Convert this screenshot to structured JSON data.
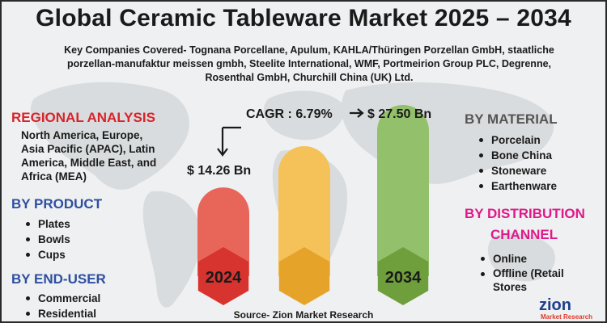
{
  "title": "Global Ceramic Tableware Market 2025 – 2034",
  "companies": "Key Companies Covered- Tognana Porcellane, Apulum, KAHLA/Thüringen Porzellan GmbH, staatliche porzellan-manufaktur meissen gmbh, Steelite International, WMF, Portmeirion Group PLC, Degrenne, Rosenthal GmbH, Churchill China (UK) Ltd.",
  "regional": {
    "heading": "REGIONAL ANALYSIS",
    "text": "North America, Europe, Asia Pacific (APAC), Latin America, Middle East, and Africa (MEA)"
  },
  "product": {
    "heading": "BY PRODUCT",
    "items": [
      "Plates",
      "Bowls",
      "Cups"
    ]
  },
  "end_user": {
    "heading": "BY END-USER",
    "items": [
      "Commercial",
      "Residential"
    ]
  },
  "material": {
    "heading": "BY MATERIAL",
    "items": [
      "Porcelain",
      "Bone China",
      "Stoneware",
      "Earthenware"
    ]
  },
  "distribution": {
    "heading_line1": "BY DISTRIBUTION",
    "heading_line2": "CHANNEL",
    "items": [
      "Online",
      "Offline (Retail Stores"
    ]
  },
  "chart_data": {
    "type": "bar",
    "categories": [
      "2024",
      "",
      "2034"
    ],
    "values": [
      14.26,
      null,
      27.5
    ],
    "value_labels": [
      "$ 14.26 Bn",
      "",
      "$ 27.50 Bn"
    ],
    "cagr_label": "CAGR : 6.79%",
    "colors": [
      "#e8655a",
      "#f5c25a",
      "#93c06a"
    ],
    "hex_colors": [
      "#d8342f",
      "#e6a32a",
      "#6f9e3c"
    ]
  },
  "source": "Source- Zion Market Research",
  "logo": {
    "name": "zion",
    "sub": "Market Research"
  }
}
